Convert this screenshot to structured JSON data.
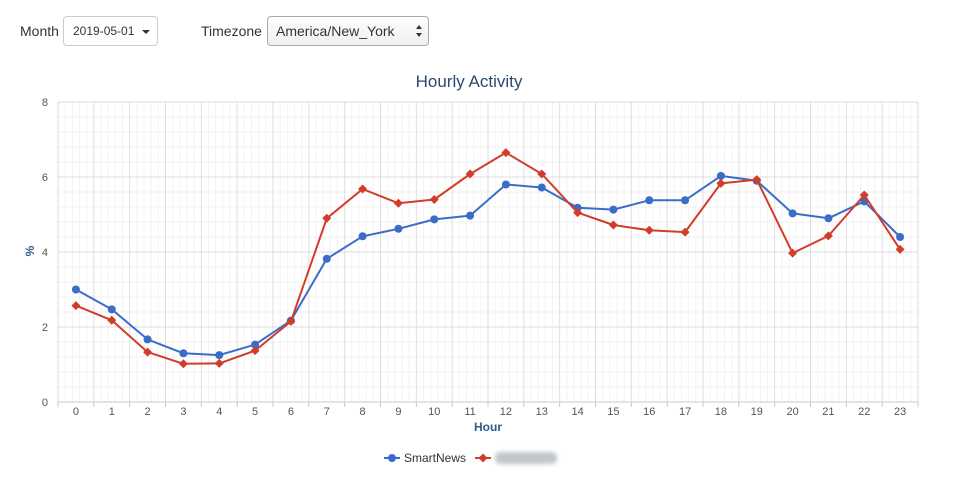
{
  "controls": {
    "month_label": "Month",
    "month_value": "2019-05-01",
    "timezone_label": "Timezone",
    "timezone_value": "America/New_York"
  },
  "chart_data": {
    "type": "line",
    "title": "Hourly Activity",
    "xlabel": "Hour",
    "ylabel": "%",
    "categories": [
      "0",
      "1",
      "2",
      "3",
      "4",
      "5",
      "6",
      "7",
      "8",
      "9",
      "10",
      "11",
      "12",
      "13",
      "14",
      "15",
      "16",
      "17",
      "18",
      "19",
      "20",
      "21",
      "22",
      "23"
    ],
    "ylim": [
      0,
      8
    ],
    "yticks": [
      0,
      2,
      4,
      6,
      8
    ],
    "grid": true,
    "legend": "bottom-center",
    "series": [
      {
        "name": "SmartNews",
        "color": "#3a6cc8",
        "marker": "circle",
        "values": [
          3.0,
          2.47,
          1.67,
          1.3,
          1.25,
          1.53,
          2.17,
          3.82,
          4.42,
          4.62,
          4.87,
          4.97,
          5.8,
          5.72,
          5.18,
          5.13,
          5.38,
          5.38,
          6.03,
          5.9,
          5.03,
          4.9,
          5.35,
          4.4
        ]
      },
      {
        "name": "",
        "color": "#d13d2a",
        "marker": "diamond",
        "values": [
          2.57,
          2.18,
          1.33,
          1.02,
          1.03,
          1.37,
          2.15,
          4.9,
          5.68,
          5.3,
          5.4,
          6.08,
          6.65,
          6.08,
          5.05,
          4.72,
          4.58,
          4.53,
          5.83,
          5.93,
          3.97,
          4.43,
          5.52,
          4.07
        ]
      }
    ]
  }
}
